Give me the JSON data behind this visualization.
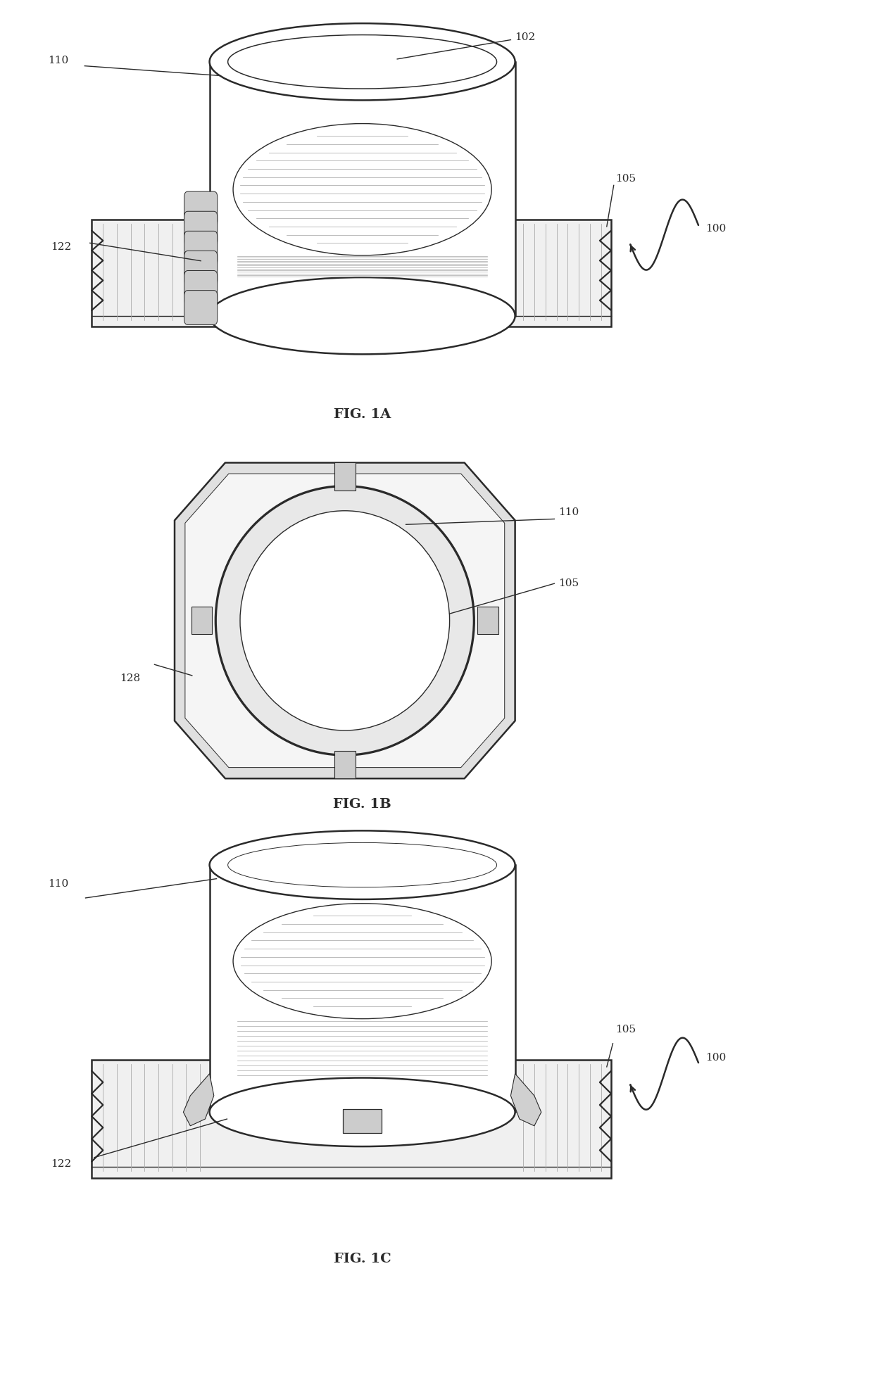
{
  "background_color": "#ffffff",
  "line_color": "#2a2a2a",
  "lw_main": 1.8,
  "lw_thin": 1.0,
  "fig_width": 12.4,
  "fig_height": 19.51,
  "fig1a_label": "FIG. 1A",
  "fig1b_label": "FIG. 1B",
  "fig1c_label": "FIG. 1C",
  "labels_1a": [
    "102",
    "110",
    "105",
    "100",
    "122"
  ],
  "labels_1b": [
    "110",
    "105",
    "128"
  ],
  "labels_1c": [
    "110",
    "105",
    "100",
    "122"
  ]
}
